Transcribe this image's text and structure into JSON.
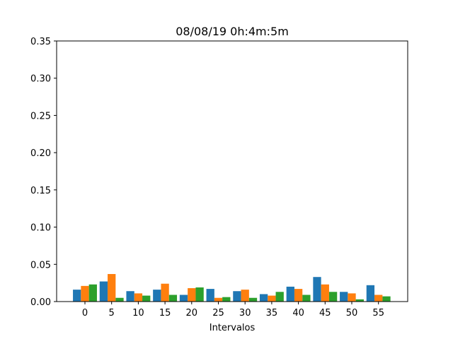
{
  "chart_data": {
    "type": "bar",
    "title": "08/08/19 0h:4m:5m",
    "xlabel": "Intervalos",
    "ylabel": "",
    "categories": [
      "0",
      "5",
      "10",
      "15",
      "20",
      "25",
      "30",
      "35",
      "40",
      "45",
      "50",
      "55"
    ],
    "yticks": [
      "0.00",
      "0.05",
      "0.10",
      "0.15",
      "0.20",
      "0.25",
      "0.30",
      "0.35"
    ],
    "ylim": [
      0,
      0.35
    ],
    "grid": false,
    "legend": "none",
    "series": [
      {
        "color": "#1f77b4",
        "values": [
          0.016,
          0.027,
          0.014,
          0.016,
          0.009,
          0.017,
          0.014,
          0.01,
          0.02,
          0.033,
          0.013,
          0.022
        ]
      },
      {
        "color": "#ff7f0e",
        "values": [
          0.021,
          0.037,
          0.011,
          0.024,
          0.018,
          0.005,
          0.016,
          0.008,
          0.017,
          0.023,
          0.011,
          0.009
        ]
      },
      {
        "color": "#2ca02c",
        "values": [
          0.023,
          0.005,
          0.008,
          0.009,
          0.019,
          0.006,
          0.005,
          0.013,
          0.009,
          0.013,
          0.003,
          0.007
        ]
      }
    ]
  }
}
